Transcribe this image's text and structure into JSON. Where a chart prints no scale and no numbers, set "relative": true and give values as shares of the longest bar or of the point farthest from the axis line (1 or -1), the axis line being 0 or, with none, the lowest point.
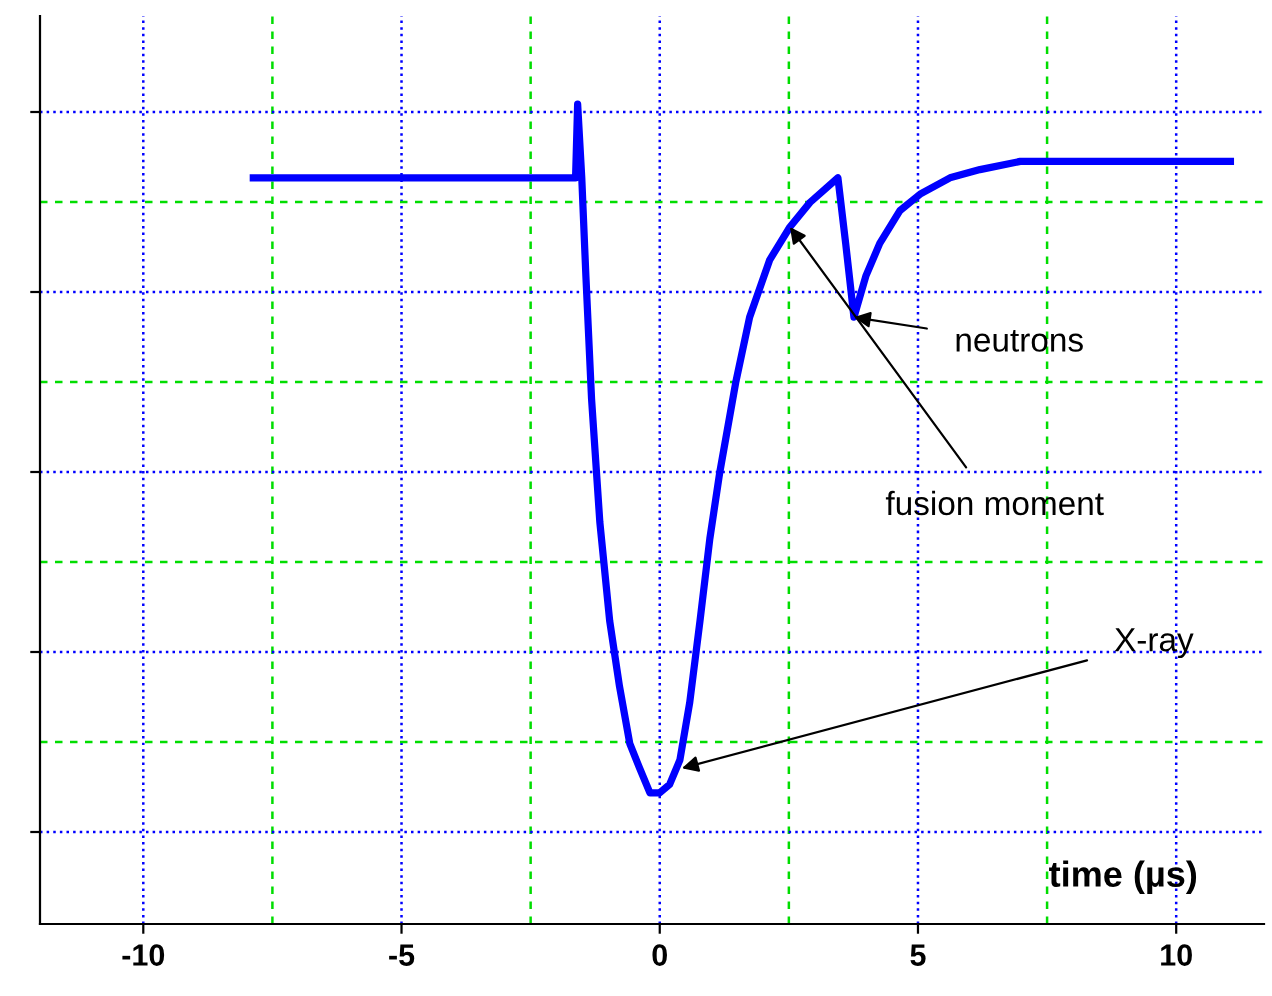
{
  "chart_data": {
    "type": "line",
    "relative": true,
    "xlabel": "time (µs)",
    "xlim": [
      -12,
      11.7
    ],
    "xticks": [
      -10,
      {
        "value": -7.5,
        "label": null
      },
      -5,
      {
        "value": -2.5,
        "label": null
      },
      0,
      {
        "value": 2.5,
        "label": null
      },
      5,
      {
        "value": 7.5,
        "label": null
      },
      10
    ],
    "grid": true,
    "tick_labels": "x",
    "marker": "none",
    "line_style": "solid",
    "series": [
      {
        "color": "#0000ff",
        "x": [
          -7.87,
          -1.63,
          -1.59,
          -1.51,
          -1.43,
          -1.32,
          -1.16,
          -0.97,
          -0.78,
          -0.58,
          -0.39,
          -0.19,
          0,
          0.19,
          0.39,
          0.58,
          0.78,
          0.97,
          1.16,
          1.47,
          1.74,
          2.13,
          2.52,
          2.91,
          3.45,
          3.6,
          3.76,
          3.99,
          4.26,
          4.65,
          5.04,
          5.62,
          6.2,
          6.98,
          8.14,
          9.3,
          10.47,
          11.05
        ],
        "values": [
          0.91,
          0.91,
          1,
          0.91,
          0.79,
          0.64,
          0.49,
          0.37,
          0.29,
          0.22,
          0.19,
          0.16,
          0.16,
          0.17,
          0.2,
          0.27,
          0.37,
          0.47,
          0.55,
          0.66,
          0.74,
          0.81,
          0.85,
          0.88,
          0.91,
          0.83,
          0.74,
          0.79,
          0.83,
          0.87,
          0.89,
          0.91,
          0.92,
          0.93,
          0.93,
          0.93,
          0.93,
          0.93
        ]
      }
    ],
    "annotations": [
      {
        "text": "X-ray",
        "x": 0.43,
        "y": 0.19
      },
      {
        "text": "fusion moment",
        "x": 2.52,
        "y": 0.85
      },
      {
        "text": "neutrons",
        "x": 3.76,
        "y": 0.74
      }
    ]
  }
}
